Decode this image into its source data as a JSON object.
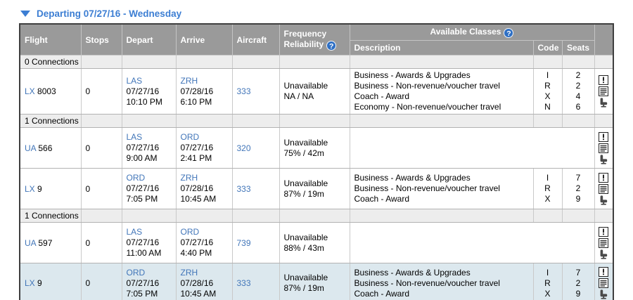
{
  "date_header": {
    "collapse_icon": "triangle-down",
    "label": "Departing 07/27/16 - Wednesday"
  },
  "help_icon_glyph": "?",
  "table": {
    "columns": {
      "flight": "Flight",
      "stops": "Stops",
      "depart": "Depart",
      "arrive": "Arrive",
      "aircraft": "Aircraft",
      "frequency_line1": "Frequency",
      "frequency_line2": "Reliability",
      "available_classes": "Available Classes",
      "description": "Description",
      "code": "Code",
      "seats": "Seats"
    },
    "row_icons": [
      "alert-icon",
      "notes-icon",
      "seat-icon"
    ],
    "rows": [
      {
        "type": "section",
        "label": "0 Connections"
      },
      {
        "type": "flight",
        "carrier": "LX",
        "number": "8003",
        "stops": "0",
        "depart": {
          "airport": "LAS",
          "date": "07/27/16",
          "time": "10:10 PM"
        },
        "arrive": {
          "airport": "ZRH",
          "date": "07/28/16",
          "time": "6:10 PM"
        },
        "aircraft": "333",
        "frequency": [
          "Unavailable",
          "NA / NA"
        ],
        "classes": [
          {
            "description": "Business - Awards & Upgrades",
            "code": "I",
            "seats": "2"
          },
          {
            "description": "Business - Non-revenue/voucher travel",
            "code": "R",
            "seats": "2"
          },
          {
            "description": "Coach - Award",
            "code": "X",
            "seats": "4"
          },
          {
            "description": "Economy - Non-revenue/voucher travel",
            "code": "N",
            "seats": "6"
          }
        ],
        "highlighted": false
      },
      {
        "type": "section",
        "label": "1 Connections"
      },
      {
        "type": "flight",
        "carrier": "UA",
        "number": "566",
        "stops": "0",
        "depart": {
          "airport": "LAS",
          "date": "07/27/16",
          "time": "9:00 AM"
        },
        "arrive": {
          "airport": "ORD",
          "date": "07/27/16",
          "time": "2:41 PM"
        },
        "aircraft": "320",
        "frequency": [
          "Unavailable",
          "75% / 42m"
        ],
        "classes": [],
        "highlighted": false
      },
      {
        "type": "flight",
        "carrier": "LX",
        "number": "9",
        "stops": "0",
        "depart": {
          "airport": "ORD",
          "date": "07/27/16",
          "time": "7:05 PM"
        },
        "arrive": {
          "airport": "ZRH",
          "date": "07/28/16",
          "time": "10:45 AM"
        },
        "aircraft": "333",
        "frequency": [
          "Unavailable",
          "87% / 19m"
        ],
        "classes": [
          {
            "description": "Business - Awards & Upgrades",
            "code": "I",
            "seats": "7"
          },
          {
            "description": "Business - Non-revenue/voucher travel",
            "code": "R",
            "seats": "2"
          },
          {
            "description": "Coach - Award",
            "code": "X",
            "seats": "9"
          }
        ],
        "highlighted": false
      },
      {
        "type": "section",
        "label": "1 Connections"
      },
      {
        "type": "flight",
        "carrier": "UA",
        "number": "597",
        "stops": "0",
        "depart": {
          "airport": "LAS",
          "date": "07/27/16",
          "time": "11:00 AM"
        },
        "arrive": {
          "airport": "ORD",
          "date": "07/27/16",
          "time": "4:40 PM"
        },
        "aircraft": "739",
        "frequency": [
          "Unavailable",
          "88% / 43m"
        ],
        "classes": [],
        "highlighted": false
      },
      {
        "type": "flight",
        "carrier": "LX",
        "number": "9",
        "stops": "0",
        "depart": {
          "airport": "ORD",
          "date": "07/27/16",
          "time": "7:05 PM"
        },
        "arrive": {
          "airport": "ZRH",
          "date": "07/28/16",
          "time": "10:45 AM"
        },
        "aircraft": "333",
        "frequency": [
          "Unavailable",
          "87% / 19m"
        ],
        "classes": [
          {
            "description": "Business - Awards & Upgrades",
            "code": "I",
            "seats": "7"
          },
          {
            "description": "Business - Non-revenue/voucher travel",
            "code": "R",
            "seats": "2"
          },
          {
            "description": "Coach - Award",
            "code": "X",
            "seats": "9"
          }
        ],
        "highlighted": true
      }
    ]
  },
  "colors": {
    "accent_blue": "#3c7ed3",
    "link_blue": "#4276b9",
    "header_gray": "#9a9a9a",
    "section_gray": "#ededed",
    "highlight_blue": "#dce8ee",
    "help_badge_blue": "#2e6fc4"
  }
}
